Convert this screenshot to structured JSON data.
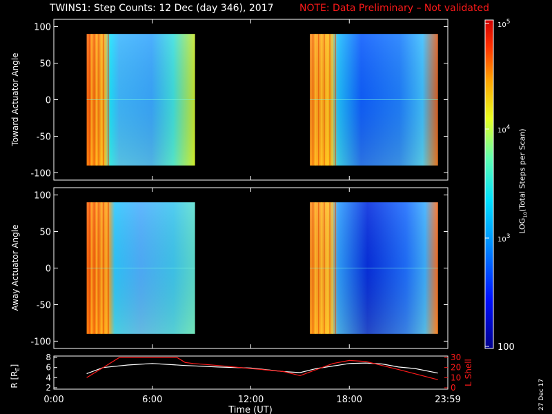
{
  "header": {
    "title": "TWINS1: Step Counts: 12 Dec (day 346), 2017",
    "note": "NOTE: Data Preliminary – Not validated"
  },
  "panels": {
    "top_ylabel": "Toward Actuator Angle",
    "bottom_ylabel": "Away Actuator Angle",
    "shell_ylabel": "L Shell",
    "r_ylabel": "R [R",
    "r_subscript": "E",
    "r_close": "]"
  },
  "xaxis": {
    "label": "Time (UT)",
    "ticks": [
      "0:00",
      "6:00",
      "12:00",
      "18:00",
      "23:59"
    ]
  },
  "colorbar": {
    "label_pre": "LOG",
    "label_sub": "10",
    "label_post": "(Total Steps per Scan)",
    "ticks": [
      "10",
      "10",
      "10",
      "100"
    ],
    "tick_exps": [
      "5",
      "4",
      "3",
      ""
    ]
  },
  "stamp": "27 Dec 17",
  "colors": {
    "background": "#000000",
    "note": "#ff1a1a",
    "orbit_r": "#ffffff",
    "orbit_l": "#ff1a1a"
  },
  "chart_data": [
    {
      "type": "heatmap",
      "name": "Toward Actuator Angle",
      "ylabel": "Toward Actuator Angle",
      "xlabel": "Time (UT)",
      "xlim": [
        0,
        24
      ],
      "ylim": [
        -110,
        110
      ],
      "yticks": [
        100,
        50,
        0,
        -50,
        -100
      ],
      "color_scale": "log10 counts, 100 to 1e5",
      "data_blocks_hours": [
        [
          2.0,
          8.6
        ],
        [
          15.6,
          23.4
        ]
      ]
    },
    {
      "type": "heatmap",
      "name": "Away Actuator Angle",
      "ylabel": "Away Actuator Angle",
      "xlabel": "Time (UT)",
      "xlim": [
        0,
        24
      ],
      "ylim": [
        -110,
        110
      ],
      "yticks": [
        100,
        50,
        0,
        -50,
        -100
      ],
      "color_scale": "log10 counts, 100 to 1e5",
      "data_blocks_hours": [
        [
          2.0,
          8.6
        ],
        [
          15.6,
          23.4
        ]
      ]
    },
    {
      "type": "line",
      "name": "orbit",
      "xlabel": "Time (UT)",
      "xlim": [
        0,
        24
      ],
      "ylim_left": [
        2,
        8
      ],
      "ylim_right": [
        0,
        30
      ],
      "yticks_left": [
        8,
        6,
        4,
        2
      ],
      "yticks_right": [
        30,
        20,
        10,
        0
      ],
      "series": [
        {
          "axis": "left",
          "x": [
            2.0,
            3.0,
            4.5,
            6.0,
            8.0,
            10.0,
            12.0,
            14.0,
            15.0,
            16.0,
            17.0,
            18.0,
            19.0,
            20.0,
            21.0,
            22.0,
            23.4
          ],
          "y": [
            4.8,
            6.0,
            6.5,
            6.8,
            6.4,
            6.1,
            5.9,
            5.2,
            5.0,
            5.8,
            6.3,
            6.8,
            6.9,
            6.7,
            6.1,
            5.8,
            4.9
          ]
        },
        {
          "axis": "right",
          "name": "L Shell",
          "x": [
            2.0,
            3.0,
            4.0,
            4.3,
            7.5,
            8.0,
            8.5,
            10.0,
            12.0,
            14.0,
            15.0,
            16.0,
            17.0,
            18.0,
            19.0,
            20.0,
            21.0,
            23.4
          ],
          "y": [
            10,
            20,
            30,
            30,
            30,
            25,
            24,
            22,
            19,
            16,
            12,
            18,
            24,
            27,
            26,
            22,
            18,
            8
          ]
        }
      ]
    }
  ]
}
